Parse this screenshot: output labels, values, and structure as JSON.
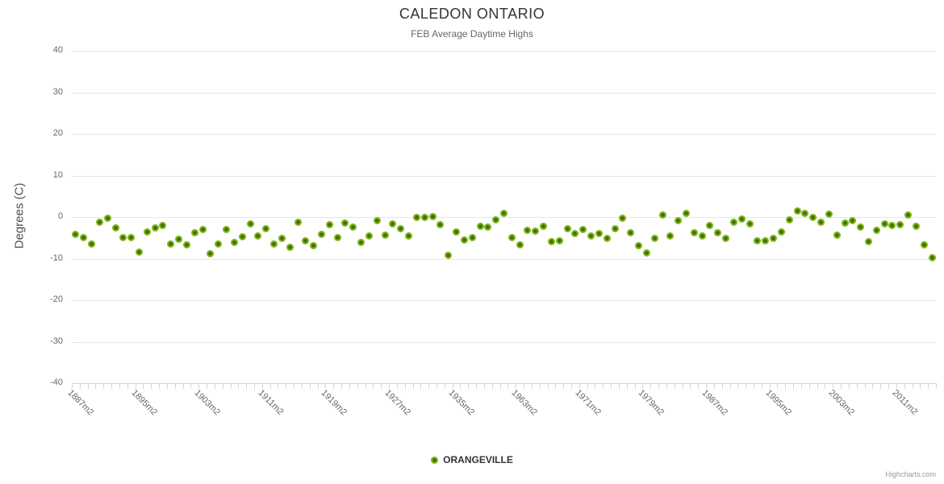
{
  "chart_data": {
    "type": "scatter",
    "title": "CALEDON ONTARIO",
    "subtitle": "FEB Average Daytime Highs",
    "ylabel": "Degrees (C)",
    "ylim": [
      -40,
      40
    ],
    "yticks": [
      40,
      30,
      20,
      10,
      0,
      -10,
      -20,
      -30,
      -40
    ],
    "grid": "horizontal",
    "legend_position": "bottom-center",
    "x_label_every": 8,
    "x_label_rotation_deg": 45,
    "categories": [
      "1887m2",
      "1888m2",
      "1889m2",
      "1890m2",
      "1891m2",
      "1892m2",
      "1893m2",
      "1894m2",
      "1895m2",
      "1896m2",
      "1897m2",
      "1898m2",
      "1899m2",
      "1900m2",
      "1901m2",
      "1902m2",
      "1903m2",
      "1904m2",
      "1905m2",
      "1906m2",
      "1907m2",
      "1908m2",
      "1909m2",
      "1910m2",
      "1911m2",
      "1912m2",
      "1913m2",
      "1914m2",
      "1915m2",
      "1916m2",
      "1917m2",
      "1918m2",
      "1919m2",
      "1920m2",
      "1921m2",
      "1922m2",
      "1923m2",
      "1924m2",
      "1925m2",
      "1926m2",
      "1927m2",
      "1928m2",
      "1929m2",
      "1930m2",
      "1931m2",
      "1932m2",
      "1933m2",
      "1934m2",
      "1935m2",
      "1936m2",
      "1937m2",
      "1938m2",
      "1939m2",
      "1940m2",
      "1941m2",
      "1942m2",
      "1963m2",
      "1964m2",
      "1965m2",
      "1966m2",
      "1967m2",
      "1968m2",
      "1969m2",
      "1970m2",
      "1971m2",
      "1972m2",
      "1973m2",
      "1974m2",
      "1975m2",
      "1976m2",
      "1977m2",
      "1978m2",
      "1979m2",
      "1980m2",
      "1981m2",
      "1982m2",
      "1983m2",
      "1984m2",
      "1985m2",
      "1986m2",
      "1987m2",
      "1988m2",
      "1989m2",
      "1990m2",
      "1991m2",
      "1992m2",
      "1993m2",
      "1994m2",
      "1995m2",
      "1996m2",
      "1997m2",
      "1998m2",
      "1999m2",
      "2000m2",
      "2001m2",
      "2002m2",
      "2003m2",
      "2004m2",
      "2005m2",
      "2006m2",
      "2007m2",
      "2008m2",
      "2009m2",
      "2010m2",
      "2011m2",
      "2012m2",
      "2013m2",
      "2014m2",
      "2015m2"
    ],
    "series": [
      {
        "name": "ORANGEVILLE",
        "color": "#7db417",
        "marker_center_color": "#3e6c06",
        "values": [
          -4.2,
          -5.0,
          -6.5,
          -1.2,
          -0.2,
          -2.6,
          -4.9,
          -5.0,
          -8.5,
          -3.6,
          -2.7,
          -2.1,
          -6.5,
          -5.4,
          -6.7,
          -3.8,
          -3.1,
          -8.8,
          -6.5,
          -3.0,
          -6.1,
          -4.8,
          -1.6,
          -4.6,
          -2.9,
          -6.6,
          -5.2,
          -7.2,
          -1.3,
          -5.7,
          -6.9,
          -4.1,
          -1.9,
          -4.9,
          -1.4,
          -2.5,
          -6.2,
          -4.5,
          -0.8,
          -4.4,
          -1.7,
          -2.9,
          -4.6,
          -0.1,
          -0.1,
          0.1,
          -1.9,
          -9.3,
          -3.6,
          -5.6,
          -4.9,
          -2.3,
          -2.4,
          -0.7,
          0.8,
          -4.9,
          -6.7,
          -3.3,
          -3.4,
          -2.3,
          -5.9,
          -5.7,
          -2.8,
          -3.9,
          -3.0,
          -4.5,
          -4.0,
          -5.2,
          -2.8,
          -0.2,
          -3.8,
          -6.8,
          -8.6,
          -5.2,
          0.4,
          -4.6,
          -0.8,
          0.8,
          -3.7,
          -4.6,
          -2.0,
          -3.7,
          -5.2,
          -1.3,
          -0.4,
          -1.7,
          -5.7,
          -5.7,
          -5.2,
          -3.6,
          -0.7,
          1.5,
          0.8,
          0.0,
          -1.3,
          0.6,
          -4.4,
          -1.5,
          -0.9,
          -2.5,
          -5.9,
          -3.2,
          -1.7,
          -2.0,
          -1.9,
          0.4,
          -2.2,
          -6.7,
          -9.8
        ]
      }
    ]
  },
  "credits": {
    "label": "Highcharts.com"
  },
  "colors": {
    "background": "#ffffff",
    "axis_line": "#ccd6eb",
    "gridline": "#e6e6e6",
    "title": "#333333",
    "subtitle": "#666666",
    "axis_label": "#666666",
    "legend_text": "#333333"
  }
}
